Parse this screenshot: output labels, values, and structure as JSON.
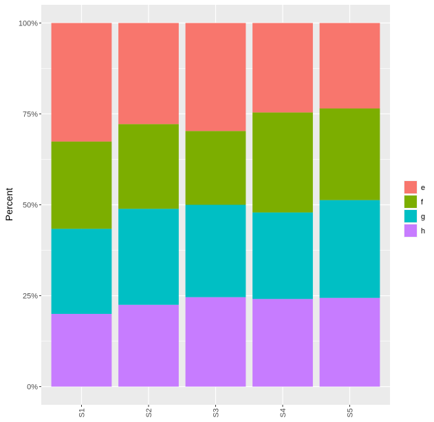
{
  "chart_data": {
    "type": "bar",
    "stacked": "percent",
    "title": "",
    "xlabel": "",
    "ylabel": "Percent",
    "ylim": [
      0,
      100
    ],
    "yticks": [
      "0%",
      "25%",
      "50%",
      "75%",
      "100%"
    ],
    "categories": [
      "S1",
      "S2",
      "S3",
      "S4",
      "S5"
    ],
    "series": [
      {
        "name": "h",
        "color": "#C77CFF",
        "values": [
          20.0,
          22.5,
          24.6,
          24.1,
          24.4
        ]
      },
      {
        "name": "g",
        "color": "#00BFC4",
        "values": [
          23.4,
          26.4,
          25.4,
          23.8,
          26.9
        ]
      },
      {
        "name": "f",
        "color": "#7CAE00",
        "values": [
          24.0,
          23.3,
          20.3,
          27.5,
          25.2
        ]
      },
      {
        "name": "e",
        "color": "#F8766D",
        "values": [
          32.6,
          27.8,
          29.7,
          24.6,
          23.5
        ]
      }
    ],
    "legend": {
      "position": "right",
      "order": [
        "e",
        "f",
        "g",
        "h"
      ]
    },
    "grid": true
  }
}
